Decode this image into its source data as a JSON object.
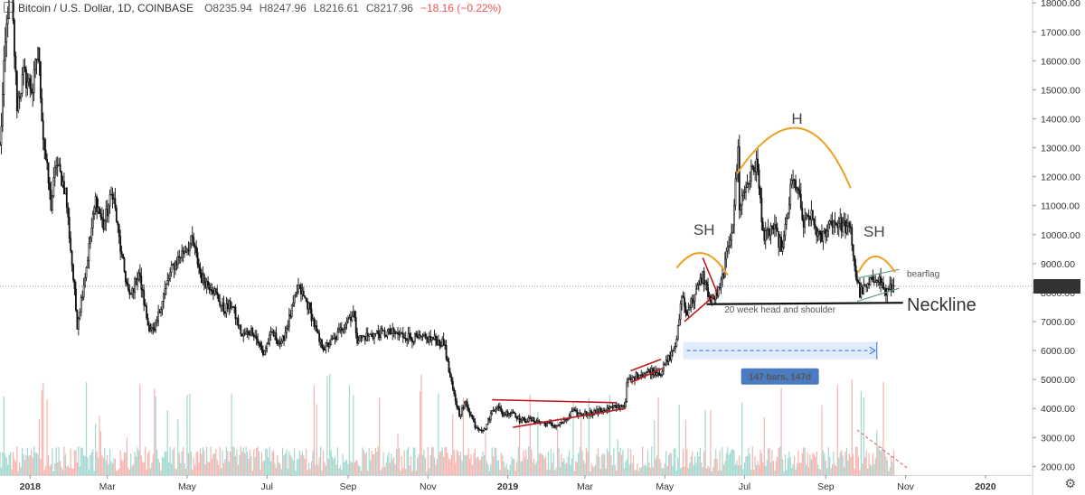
{
  "header": {
    "symbol": "Bitcoin / U.S. Dollar, 1D, COINBASE",
    "open": "O8235.94",
    "high": "H8247.96",
    "low": "L8216.61",
    "close": "C8217.96",
    "change": "−18.16 (−0.22%)"
  },
  "chart_data": {
    "type": "candlestick",
    "y_ticks": [
      "2000.00",
      "3000.00",
      "4000.00",
      "5000.00",
      "6000.00",
      "7000.00",
      "8000.00",
      "9000.00",
      "10000.00",
      "11000.00",
      "12000.00",
      "13000.00",
      "14000.00",
      "15000.00",
      "16000.00",
      "17000.00",
      "18000.00"
    ],
    "ylim": [
      1700,
      18100
    ],
    "x_labels": [
      {
        "label": "2018",
        "date": "2018-01-01",
        "major": true
      },
      {
        "label": "Mar",
        "date": "2018-03-01"
      },
      {
        "label": "May",
        "date": "2018-05-01"
      },
      {
        "label": "Jul",
        "date": "2018-07-01"
      },
      {
        "label": "Sep",
        "date": "2018-09-01"
      },
      {
        "label": "Nov",
        "date": "2018-11-01"
      },
      {
        "label": "2019",
        "date": "2019-01-01",
        "major": true
      },
      {
        "label": "Mar",
        "date": "2019-03-01"
      },
      {
        "label": "May",
        "date": "2019-05-01"
      },
      {
        "label": "Jul",
        "date": "2019-07-01"
      },
      {
        "label": "Sep",
        "date": "2019-09-01"
      },
      {
        "label": "Nov",
        "date": "2019-11-01"
      },
      {
        "label": "2020",
        "date": "2020-01-01",
        "major": true
      }
    ],
    "xlim": [
      "2017-12-09",
      "2020-02-06"
    ],
    "last_date": "2019-10-23",
    "last_price": 8217.96,
    "last_price_label": "8217.96",
    "price_path": [
      [
        "2017-12-09",
        13000
      ],
      [
        "2017-12-13",
        16500
      ],
      [
        "2017-12-17",
        19000
      ],
      [
        "2017-12-22",
        14500
      ],
      [
        "2017-12-27",
        15500
      ],
      [
        "2018-01-03",
        15000
      ],
      [
        "2018-01-07",
        16500
      ],
      [
        "2018-01-11",
        13400
      ],
      [
        "2018-01-17",
        11000
      ],
      [
        "2018-01-21",
        12500
      ],
      [
        "2018-01-28",
        11500
      ],
      [
        "2018-02-02",
        9000
      ],
      [
        "2018-02-06",
        6900
      ],
      [
        "2018-02-13",
        8900
      ],
      [
        "2018-02-20",
        11200
      ],
      [
        "2018-02-26",
        10300
      ],
      [
        "2018-03-05",
        11500
      ],
      [
        "2018-03-12",
        9200
      ],
      [
        "2018-03-18",
        7800
      ],
      [
        "2018-03-25",
        8700
      ],
      [
        "2018-04-01",
        6900
      ],
      [
        "2018-04-06",
        6600
      ],
      [
        "2018-04-12",
        7800
      ],
      [
        "2018-04-20",
        8900
      ],
      [
        "2018-04-26",
        9300
      ],
      [
        "2018-05-05",
        9800
      ],
      [
        "2018-05-12",
        8500
      ],
      [
        "2018-05-20",
        8200
      ],
      [
        "2018-05-29",
        7400
      ],
      [
        "2018-06-04",
        7600
      ],
      [
        "2018-06-12",
        6500
      ],
      [
        "2018-06-20",
        6700
      ],
      [
        "2018-06-28",
        5900
      ],
      [
        "2018-07-05",
        6600
      ],
      [
        "2018-07-12",
        6200
      ],
      [
        "2018-07-20",
        7400
      ],
      [
        "2018-07-25",
        8200
      ],
      [
        "2018-08-02",
        7500
      ],
      [
        "2018-08-10",
        6300
      ],
      [
        "2018-08-14",
        6100
      ],
      [
        "2018-08-22",
        6400
      ],
      [
        "2018-08-30",
        7000
      ],
      [
        "2018-09-05",
        7300
      ],
      [
        "2018-09-08",
        6400
      ],
      [
        "2018-09-15",
        6500
      ],
      [
        "2018-09-25",
        6600
      ],
      [
        "2018-10-05",
        6600
      ],
      [
        "2018-10-15",
        6500
      ],
      [
        "2018-10-25",
        6400
      ],
      [
        "2018-11-05",
        6400
      ],
      [
        "2018-11-14",
        6200
      ],
      [
        "2018-11-16",
        5500
      ],
      [
        "2018-11-20",
        4600
      ],
      [
        "2018-11-25",
        3800
      ],
      [
        "2018-11-30",
        4200
      ],
      [
        "2018-12-07",
        3400
      ],
      [
        "2018-12-14",
        3250
      ],
      [
        "2018-12-20",
        3900
      ],
      [
        "2018-12-24",
        4100
      ],
      [
        "2018-12-28",
        3800
      ],
      [
        "2019-01-05",
        3900
      ],
      [
        "2019-01-10",
        3600
      ],
      [
        "2019-01-20",
        3600
      ],
      [
        "2019-01-28",
        3500
      ],
      [
        "2019-02-07",
        3400
      ],
      [
        "2019-02-15",
        3600
      ],
      [
        "2019-02-19",
        3900
      ],
      [
        "2019-02-24",
        3800
      ],
      [
        "2019-03-05",
        3850
      ],
      [
        "2019-03-15",
        3950
      ],
      [
        "2019-03-25",
        4050
      ],
      [
        "2019-04-01",
        4150
      ],
      [
        "2019-04-02",
        4900
      ],
      [
        "2019-04-10",
        5150
      ],
      [
        "2019-04-20",
        5300
      ],
      [
        "2019-04-28",
        5250
      ],
      [
        "2019-05-05",
        5800
      ],
      [
        "2019-05-10",
        6300
      ],
      [
        "2019-05-14",
        8000
      ],
      [
        "2019-05-17",
        7300
      ],
      [
        "2019-05-25",
        8000
      ],
      [
        "2019-05-30",
        8600
      ],
      [
        "2019-06-05",
        7700
      ],
      [
        "2019-06-12",
        8100
      ],
      [
        "2019-06-17",
        9200
      ],
      [
        "2019-06-22",
        10500
      ],
      [
        "2019-06-26",
        12900
      ],
      [
        "2019-06-27",
        11000
      ],
      [
        "2019-07-03",
        11800
      ],
      [
        "2019-07-10",
        12500
      ],
      [
        "2019-07-16",
        9800
      ],
      [
        "2019-07-22",
        10300
      ],
      [
        "2019-07-30",
        9500
      ],
      [
        "2019-08-06",
        11800
      ],
      [
        "2019-08-10",
        11700
      ],
      [
        "2019-08-15",
        10300
      ],
      [
        "2019-08-20",
        10700
      ],
      [
        "2019-08-28",
        9800
      ],
      [
        "2019-09-05",
        10500
      ],
      [
        "2019-09-15",
        10300
      ],
      [
        "2019-09-20",
        10100
      ],
      [
        "2019-09-24",
        8600
      ],
      [
        "2019-09-27",
        8000
      ],
      [
        "2019-10-03",
        8200
      ],
      [
        "2019-10-10",
        8600
      ],
      [
        "2019-10-17",
        8000
      ],
      [
        "2019-10-23",
        8217.96
      ]
    ]
  },
  "annotations": {
    "h_label": "H",
    "sh_left_label": "SH",
    "sh_right_label": "SH",
    "neckline_label": "Neckline",
    "bearflag_label": "bearflag",
    "hs_label": "20 week head and shoulder",
    "range_label": "147 bars, 147d"
  },
  "colors": {
    "candle_body": "#111111",
    "volume_up": "#8fd1c7",
    "volume_down": "#f3a6a0",
    "curve": "#f0a020",
    "trendline": "#c0181c",
    "neckline": "#111111",
    "flag": "#5fa08a",
    "range_fill": "#dce9fb",
    "range_line": "#2f6fe0",
    "range_badge": "#4b7cc2",
    "price_line": "#999999",
    "price_badge": "#333333"
  },
  "settings_icon": "gear-icon"
}
